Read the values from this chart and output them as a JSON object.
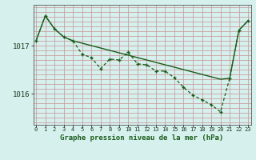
{
  "title": "Graphe pression niveau de la mer (hPa)",
  "background_color": "#d6f0ee",
  "plot_bg_color": "#d6f0ee",
  "grid_color": "#c8a0a0",
  "line_color": "#1a5c1a",
  "x_labels": [
    "0",
    "1",
    "2",
    "3",
    "4",
    "5",
    "6",
    "7",
    "8",
    "9",
    "10",
    "11",
    "12",
    "13",
    "14",
    "15",
    "16",
    "17",
    "18",
    "19",
    "20",
    "21",
    "22",
    "23"
  ],
  "y_ticks": [
    1016,
    1017
  ],
  "ylim": [
    1015.35,
    1017.85
  ],
  "xlim": [
    -0.3,
    23.3
  ],
  "actual_data": [
    1017.1,
    1017.62,
    1017.35,
    1017.18,
    1017.1,
    1016.82,
    1016.75,
    1016.52,
    1016.72,
    1016.7,
    1016.86,
    1016.62,
    1016.6,
    1016.47,
    1016.47,
    1016.33,
    1016.13,
    1015.97,
    1015.87,
    1015.77,
    1015.62,
    1016.32,
    1017.32,
    1017.52
  ],
  "trend_data": [
    1017.1,
    1017.62,
    1017.35,
    1017.18,
    1017.1,
    1017.05,
    1017.0,
    1016.95,
    1016.9,
    1016.85,
    1016.8,
    1016.75,
    1016.7,
    1016.65,
    1016.6,
    1016.55,
    1016.5,
    1016.45,
    1016.4,
    1016.35,
    1016.3,
    1016.32,
    1017.32,
    1017.52
  ]
}
